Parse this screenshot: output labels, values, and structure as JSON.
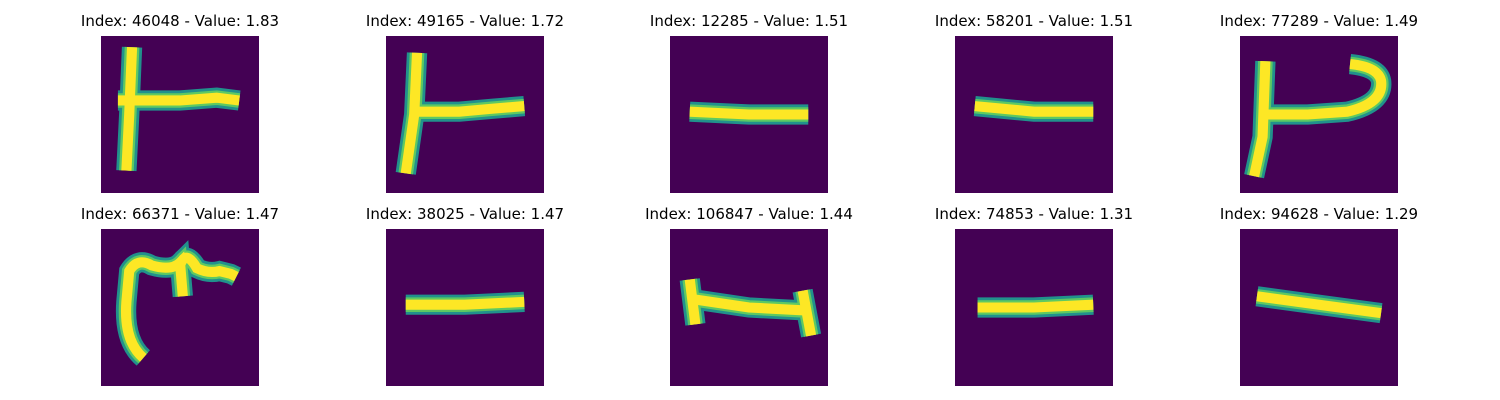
{
  "colors": {
    "background": "#440154",
    "stroke_outer": "#21918c",
    "stroke_mid": "#5ec962",
    "stroke_core": "#fde725"
  },
  "panels": [
    {
      "title": "Index: 46048 - Value: 1.83"
    },
    {
      "title": "Index: 49165 - Value: 1.72"
    },
    {
      "title": "Index: 12285 - Value: 1.51"
    },
    {
      "title": "Index: 58201 - Value: 1.51"
    },
    {
      "title": "Index: 77289 - Value: 1.49"
    },
    {
      "title": "Index: 66371 - Value: 1.47"
    },
    {
      "title": "Index: 38025 - Value: 1.47"
    },
    {
      "title": "Index: 106847 - Value: 1.44"
    },
    {
      "title": "Index: 74853 - Value: 1.31"
    },
    {
      "title": "Index: 94628 - Value: 1.29"
    }
  ]
}
